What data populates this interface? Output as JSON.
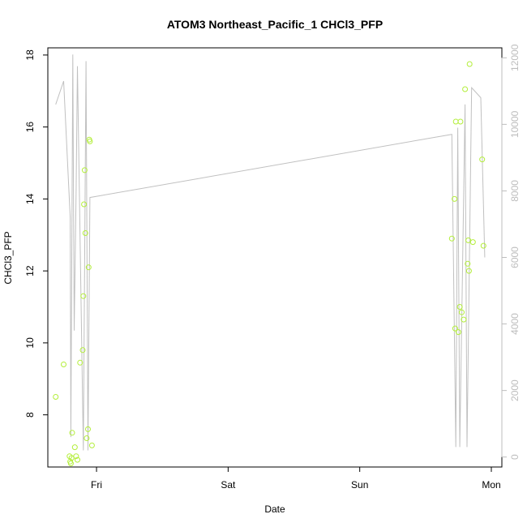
{
  "chart_data": {
    "type": "scatter",
    "title": "ATOM3 Northeast_Pacific_1 CHCl3_PFP",
    "xlabel": "Date",
    "ylabel": "CHCl3_PFP",
    "x_unit": "day",
    "x_ticks": [
      {
        "label": "Fri",
        "value": 0
      },
      {
        "label": "Sat",
        "value": 1
      },
      {
        "label": "Sun",
        "value": 2
      },
      {
        "label": "Mon",
        "value": 3
      }
    ],
    "xlim": [
      -0.37,
      3.08
    ],
    "ylim": [
      6.55,
      18.2
    ],
    "y_ticks": [
      8,
      10,
      12,
      14,
      16,
      18
    ],
    "y2lim": [
      -300,
      12300
    ],
    "y2_ticks": [
      0,
      2000,
      4000,
      6000,
      8000,
      10000,
      12000
    ],
    "colors": {
      "points": "#b3ee3a",
      "line": "#c0c0c0",
      "right_axis": "#bdbdbd"
    },
    "series": [
      {
        "axis": "left",
        "style": "points",
        "points": [
          [
            -0.31,
            8.5
          ],
          [
            -0.25,
            9.4
          ],
          [
            -0.205,
            6.85
          ],
          [
            -0.2,
            6.7
          ],
          [
            -0.195,
            6.65
          ],
          [
            -0.19,
            6.8
          ],
          [
            -0.185,
            7.5
          ],
          [
            -0.165,
            7.1
          ],
          [
            -0.155,
            6.85
          ],
          [
            -0.145,
            6.75
          ],
          [
            -0.125,
            9.45
          ],
          [
            -0.105,
            9.8
          ],
          [
            -0.1,
            11.3
          ],
          [
            -0.095,
            13.85
          ],
          [
            -0.09,
            14.8
          ],
          [
            -0.085,
            13.05
          ],
          [
            -0.075,
            7.35
          ],
          [
            -0.065,
            7.6
          ],
          [
            -0.06,
            12.1
          ],
          [
            -0.055,
            15.65
          ],
          [
            -0.05,
            15.6
          ],
          [
            -0.035,
            7.15
          ],
          [
            2.7,
            12.9
          ],
          [
            2.72,
            14.0
          ],
          [
            2.725,
            10.4
          ],
          [
            2.73,
            16.15
          ],
          [
            2.75,
            10.3
          ],
          [
            2.76,
            11.0
          ],
          [
            2.765,
            16.15
          ],
          [
            2.775,
            10.85
          ],
          [
            2.79,
            10.65
          ],
          [
            2.8,
            17.05
          ],
          [
            2.82,
            12.2
          ],
          [
            2.825,
            12.85
          ],
          [
            2.83,
            12.0
          ],
          [
            2.835,
            17.75
          ],
          [
            2.86,
            12.8
          ],
          [
            2.93,
            15.1
          ],
          [
            2.94,
            12.7
          ]
        ]
      },
      {
        "axis": "right",
        "style": "line",
        "points": [
          [
            -0.31,
            10.6
          ],
          [
            -0.25,
            11.3
          ],
          [
            -0.2,
            7.2
          ],
          [
            -0.195,
            0.6
          ],
          [
            -0.18,
            12.1
          ],
          [
            -0.17,
            3.8
          ],
          [
            -0.155,
            8.0
          ],
          [
            -0.145,
            11.75
          ],
          [
            -0.1,
            0.2
          ],
          [
            -0.08,
            11.9
          ],
          [
            -0.065,
            0.2
          ],
          [
            -0.05,
            7.8
          ],
          [
            2.7,
            9.7
          ],
          [
            2.73,
            0.3
          ],
          [
            2.745,
            9.9
          ],
          [
            2.76,
            0.3
          ],
          [
            2.8,
            10.6
          ],
          [
            2.815,
            0.3
          ],
          [
            2.85,
            11.1
          ],
          [
            2.92,
            10.8
          ],
          [
            2.95,
            6.0
          ]
        ]
      }
    ]
  }
}
